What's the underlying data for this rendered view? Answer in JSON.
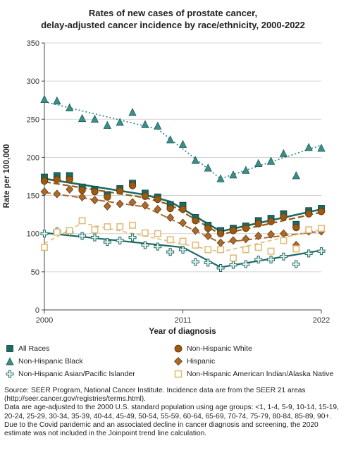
{
  "chart_data": {
    "type": "scatter",
    "title": "Rates of new cases of prostate cancer, delay-adjusted cancer incidence by race/ethnicity, 2000-2022",
    "title_lines": [
      "Rates of new cases of prostate cancer,",
      "delay-adjusted cancer incidence by race/ethnicity, 2000-2022"
    ],
    "xlabel": "Year of diagnosis",
    "ylabel": "Rate per 100,000",
    "xlim": [
      2000,
      2022
    ],
    "ylim": [
      0,
      350
    ],
    "x_ticks": [
      2000,
      2011,
      2022
    ],
    "y_ticks": [
      0,
      50,
      100,
      150,
      200,
      250,
      300,
      350
    ],
    "grid": "horizontal",
    "legend_position": "bottom",
    "x": [
      2000,
      2001,
      2002,
      2003,
      2004,
      2005,
      2006,
      2007,
      2008,
      2009,
      2010,
      2011,
      2012,
      2013,
      2014,
      2015,
      2016,
      2017,
      2018,
      2019,
      2020,
      2021,
      2022
    ],
    "series": [
      {
        "name": "All Races",
        "marker": "square",
        "color": "#1c6b63",
        "values": [
          174,
          176,
          176,
          161,
          158,
          151,
          159,
          166,
          153,
          148,
          138,
          137,
          121,
          111,
          104,
          107,
          110,
          117,
          120,
          126,
          112,
          130,
          133
        ],
        "trend": [
          [
            2000,
            172
          ],
          [
            2008,
            151
          ],
          [
            2010,
            142
          ],
          [
            2014,
            103
          ],
          [
            2022,
            132
          ]
        ]
      },
      {
        "name": "Non-Hispanic White",
        "marker": "circle",
        "color": "#9a5a12",
        "values": [
          169,
          171,
          171,
          157,
          155,
          148,
          156,
          163,
          149,
          145,
          133,
          132,
          117,
          107,
          100,
          104,
          107,
          113,
          116,
          122,
          108,
          126,
          129
        ],
        "trend": [
          [
            2000,
            168
          ],
          [
            2008,
            147
          ],
          [
            2010,
            138
          ],
          [
            2014,
            99
          ],
          [
            2022,
            128
          ]
        ]
      },
      {
        "name": "Non-Hispanic Black",
        "marker": "triangle",
        "color": "#3c8f88",
        "values": [
          276,
          274,
          265,
          251,
          250,
          242,
          246,
          259,
          243,
          241,
          223,
          217,
          196,
          186,
          172,
          177,
          183,
          192,
          195,
          205,
          176,
          213,
          212
        ],
        "trend": [
          [
            2000,
            273
          ],
          [
            2009,
            237
          ],
          [
            2014,
            172
          ],
          [
            2022,
            216
          ]
        ]
      },
      {
        "name": "Hispanic",
        "marker": "diamond",
        "color": "#a86a2e",
        "values": [
          155,
          152,
          158,
          148,
          144,
          136,
          139,
          141,
          137,
          132,
          121,
          114,
          104,
          97,
          88,
          91,
          93,
          97,
          99,
          100,
          85,
          103,
          103
        ],
        "trend": [
          [
            2000,
            154
          ],
          [
            2008,
            135
          ],
          [
            2014,
            88
          ],
          [
            2022,
            103
          ]
        ]
      },
      {
        "name": "Non-Hispanic Asian/Pacific Islander",
        "marker": "cross",
        "color": "#1c6b63",
        "values": [
          100,
          103,
          102,
          97,
          95,
          89,
          91,
          95,
          85,
          83,
          76,
          79,
          63,
          62,
          55,
          59,
          60,
          66,
          66,
          70,
          60,
          74,
          77
        ],
        "trend": [
          [
            2000,
            101
          ],
          [
            2011,
            82
          ],
          [
            2014,
            56
          ],
          [
            2022,
            78
          ]
        ]
      },
      {
        "name": "Non-Hispanic American Indian/Alaska Native",
        "marker": "open-square",
        "color": "#e0bd7a",
        "values": [
          82,
          102,
          104,
          117,
          105,
          109,
          109,
          111,
          101,
          100,
          92,
          90,
          85,
          79,
          79,
          68,
          79,
          82,
          77,
          91,
          80,
          105,
          107
        ],
        "trend": [
          [
            2000,
            87
          ],
          [
            2003,
            114
          ],
          [
            2014,
            76
          ],
          [
            2022,
            106
          ]
        ]
      }
    ]
  },
  "legend": {
    "all_races": "All Races",
    "nh_black": "Non-Hispanic Black",
    "nh_api": "Non-Hispanic Asian/Pacific Islander",
    "nh_white": "Non-Hispanic White",
    "hispanic": "Hispanic",
    "nh_aian": "Non-Hispanic American Indian/Alaska Native"
  },
  "source": {
    "line1": "Source: SEER Program, National Cancer Institute. Incidence data are from the SEER 21 areas (http://seer.cancer.gov/registries/terms.html).",
    "line2": "Data are age-adjusted to the 2000 U.S. standard population using age groups: <1, 1-4, 5-9, 10-14, 15-19, 20-24, 25-29, 30-34, 35-39, 40-44, 45-49, 50-54, 55-59, 60-64, 65-69, 70-74, 75-79, 80-84, 85-89, 90+.",
    "line3": "Due to the Covid pandemic and an associated decline in cancer diagnosis and screening, the 2020 estimate was not included in the Joinpoint trend line calculation."
  }
}
